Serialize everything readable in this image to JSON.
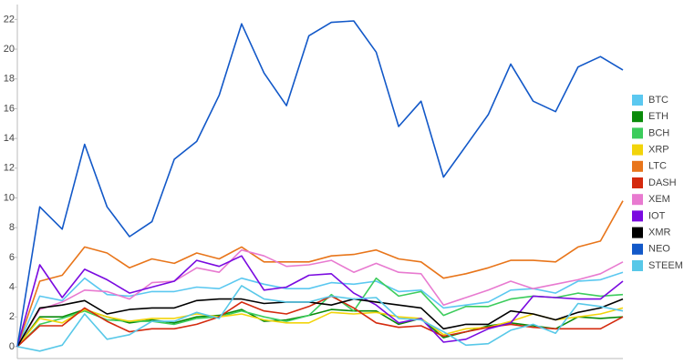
{
  "chart_data": {
    "type": "line",
    "categories": [
      null,
      null,
      null,
      null,
      null,
      null,
      null,
      null,
      null,
      null,
      null,
      null,
      null,
      null,
      null,
      null,
      null,
      null,
      null,
      null,
      null,
      null,
      null,
      null,
      null,
      null,
      null,
      null
    ],
    "ylim": [
      -0.8,
      23
    ],
    "yticks": [
      0,
      2,
      4,
      6,
      8,
      10,
      12,
      14,
      16,
      18,
      20,
      22
    ],
    "grid": false,
    "legend": "right",
    "series": [
      {
        "name": "BTC",
        "color": "#5bc8f0",
        "values": [
          0,
          3.4,
          3.1,
          4.6,
          3.5,
          3.4,
          3.7,
          3.7,
          4.0,
          3.9,
          4.6,
          4.2,
          3.9,
          3.9,
          4.3,
          4.2,
          4.4,
          3.7,
          3.8,
          2.6,
          2.8,
          3.0,
          3.8,
          3.9,
          3.6,
          4.4,
          4.5,
          5.0
        ]
      },
      {
        "name": "ETH",
        "color": "#0a8a0a",
        "values": [
          0,
          2.0,
          2.0,
          2.5,
          2.0,
          1.6,
          1.8,
          1.6,
          2.0,
          2.1,
          2.5,
          1.7,
          1.8,
          2.1,
          2.5,
          2.4,
          2.4,
          1.5,
          1.9,
          0.6,
          1.0,
          1.4,
          1.6,
          1.4,
          1.2,
          2.0,
          1.9,
          2.0
        ]
      },
      {
        "name": "BCH",
        "color": "#3ccc5c",
        "values": [
          0,
          1.5,
          1.9,
          2.4,
          1.8,
          1.7,
          1.7,
          1.5,
          1.9,
          2.0,
          2.4,
          2.0,
          1.7,
          2.1,
          3.5,
          2.4,
          4.6,
          3.4,
          3.7,
          2.1,
          2.7,
          2.7,
          3.2,
          3.4,
          3.3,
          3.6,
          3.4,
          3.5
        ]
      },
      {
        "name": "XRP",
        "color": "#f2d40a",
        "values": [
          0,
          1.9,
          1.6,
          2.5,
          2.0,
          1.7,
          1.9,
          1.9,
          2.2,
          2.0,
          2.2,
          1.8,
          1.6,
          1.6,
          2.3,
          2.2,
          2.3,
          2.0,
          1.9,
          0.8,
          1.2,
          1.3,
          1.7,
          2.2,
          1.8,
          2.0,
          2.2,
          2.6
        ]
      },
      {
        "name": "LTC",
        "color": "#e8751a",
        "values": [
          0,
          4.4,
          4.8,
          6.7,
          6.3,
          5.3,
          5.9,
          5.6,
          6.3,
          5.9,
          6.7,
          5.7,
          5.7,
          5.7,
          6.1,
          6.2,
          6.5,
          5.9,
          5.7,
          4.6,
          4.9,
          5.3,
          5.8,
          5.8,
          5.7,
          6.7,
          7.1,
          9.8
        ]
      },
      {
        "name": "DASH",
        "color": "#d42a0e",
        "values": [
          0,
          1.4,
          1.4,
          2.6,
          1.7,
          1.0,
          1.2,
          1.2,
          1.5,
          2.0,
          3.0,
          2.4,
          2.2,
          2.7,
          3.4,
          2.6,
          1.6,
          1.3,
          1.4,
          0.7,
          1.0,
          1.3,
          1.5,
          1.3,
          1.2,
          1.2,
          1.2,
          2.0
        ]
      },
      {
        "name": "XEM",
        "color": "#e87ad0",
        "values": [
          0,
          2.5,
          3.0,
          3.8,
          3.7,
          3.2,
          4.3,
          4.4,
          5.3,
          5.0,
          6.5,
          6.1,
          5.4,
          5.5,
          5.8,
          5.0,
          5.6,
          5.0,
          4.9,
          2.8,
          3.3,
          3.8,
          4.4,
          3.9,
          4.2,
          4.5,
          4.9,
          5.7
        ]
      },
      {
        "name": "IOT",
        "color": "#7a0ae0",
        "values": [
          0,
          5.5,
          3.3,
          5.2,
          4.5,
          3.6,
          4.0,
          4.4,
          5.8,
          5.4,
          6.1,
          3.8,
          4.0,
          4.8,
          4.9,
          3.6,
          2.8,
          1.6,
          1.9,
          0.3,
          0.5,
          1.2,
          1.6,
          3.4,
          3.3,
          3.2,
          3.2,
          4.4
        ]
      },
      {
        "name": "XMR",
        "color": "#000000",
        "values": [
          0,
          2.6,
          2.8,
          3.1,
          2.2,
          2.5,
          2.6,
          2.6,
          3.1,
          3.2,
          3.2,
          2.9,
          3.0,
          3.0,
          2.8,
          3.2,
          3.0,
          2.8,
          2.6,
          1.2,
          1.5,
          1.5,
          2.4,
          2.2,
          1.8,
          2.3,
          2.6,
          3.2
        ]
      },
      {
        "name": "NEO",
        "color": "#1258c8",
        "values": [
          0,
          9.4,
          7.9,
          13.6,
          9.4,
          7.4,
          8.4,
          12.6,
          13.8,
          16.9,
          21.7,
          18.4,
          16.2,
          20.9,
          21.8,
          21.9,
          19.8,
          14.8,
          16.5,
          11.4,
          13.5,
          15.6,
          19.0,
          16.5,
          15.8,
          18.8,
          19.5,
          18.6
        ]
      },
      {
        "name": "STEEM",
        "color": "#58c8e8",
        "values": [
          0,
          -0.3,
          0.1,
          2.2,
          0.5,
          0.8,
          1.7,
          1.7,
          2.3,
          1.9,
          4.1,
          3.2,
          3.0,
          3.0,
          3.4,
          3.2,
          3.3,
          1.9,
          1.8,
          1.0,
          0.1,
          0.2,
          1.1,
          1.5,
          0.9,
          2.9,
          2.7,
          2.4
        ]
      }
    ]
  }
}
